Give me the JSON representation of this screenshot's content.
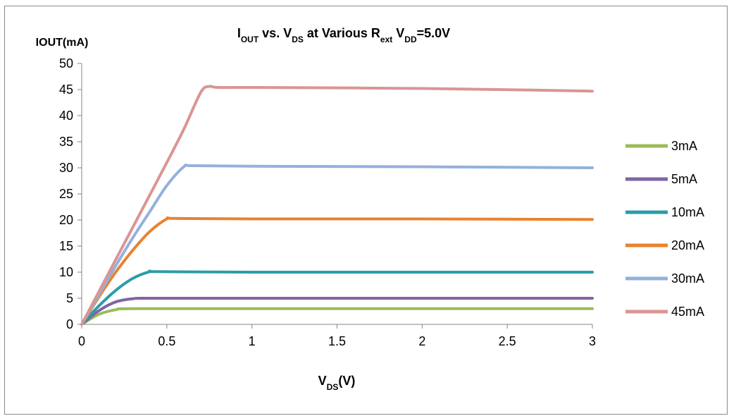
{
  "chart_data": {
    "type": "line",
    "title": {
      "segments": [
        {
          "text": "I",
          "sub": false
        },
        {
          "text": "OUT",
          "sub": true
        },
        {
          "text": " vs. V",
          "sub": false
        },
        {
          "text": "DS",
          "sub": true
        },
        {
          "text": " at Various R",
          "sub": false
        },
        {
          "text": "ext",
          "sub": true
        },
        {
          "text": " V",
          "sub": false
        },
        {
          "text": "DD",
          "sub": true
        },
        {
          "text": "=5.0V",
          "sub": false
        }
      ]
    },
    "ylabel": "IOUT(mA)",
    "xlabel": {
      "segments": [
        {
          "text": "V",
          "sub": false
        },
        {
          "text": "DS",
          "sub": true
        },
        {
          "text": "(V)",
          "sub": false
        }
      ]
    },
    "xlim": [
      0,
      3
    ],
    "ylim": [
      0,
      50
    ],
    "x_ticks": [
      0,
      0.5,
      1,
      1.5,
      2,
      2.5,
      3
    ],
    "x_tick_labels": [
      "0",
      "0.5",
      "1",
      "1.5",
      "2",
      "2.5",
      "3"
    ],
    "y_ticks": [
      0,
      5,
      10,
      15,
      20,
      25,
      30,
      35,
      40,
      45,
      50
    ],
    "y_tick_labels": [
      "0",
      "5",
      "10",
      "15",
      "20",
      "25",
      "30",
      "35",
      "40",
      "45",
      "50"
    ],
    "grid": {
      "horizontal": false,
      "vertical": false
    },
    "legend_position": "right",
    "series": [
      {
        "name": "3mA",
        "color": "#9BBB59",
        "points": [
          [
            0,
            0
          ],
          [
            0.1,
            1.9
          ],
          [
            0.2,
            2.8
          ],
          [
            0.3,
            3.0
          ],
          [
            1,
            3.0
          ],
          [
            2,
            3.0
          ],
          [
            3,
            3.0
          ]
        ]
      },
      {
        "name": "5mA",
        "color": "#8064A2",
        "points": [
          [
            0,
            0
          ],
          [
            0.1,
            2.6
          ],
          [
            0.2,
            4.3
          ],
          [
            0.3,
            4.9
          ],
          [
            0.4,
            5.0
          ],
          [
            1,
            5.0
          ],
          [
            2,
            5.0
          ],
          [
            3,
            5.0
          ]
        ]
      },
      {
        "name": "10mA",
        "color": "#2C9CAA",
        "points": [
          [
            0,
            0
          ],
          [
            0.1,
            3.5
          ],
          [
            0.2,
            6.5
          ],
          [
            0.3,
            8.8
          ],
          [
            0.4,
            10.1
          ],
          [
            0.45,
            10.1
          ],
          [
            1,
            10.0
          ],
          [
            2,
            10.0
          ],
          [
            3,
            10.0
          ]
        ]
      },
      {
        "name": "20mA",
        "color": "#E9822F",
        "points": [
          [
            0,
            0
          ],
          [
            0.1,
            5.2
          ],
          [
            0.2,
            10.0
          ],
          [
            0.3,
            14.2
          ],
          [
            0.4,
            17.8
          ],
          [
            0.5,
            20.2
          ],
          [
            0.55,
            20.3
          ],
          [
            1,
            20.2
          ],
          [
            2,
            20.2
          ],
          [
            3,
            20.1
          ]
        ]
      },
      {
        "name": "30mA",
        "color": "#93B1DB",
        "points": [
          [
            0,
            0
          ],
          [
            0.1,
            5.6
          ],
          [
            0.2,
            11.2
          ],
          [
            0.3,
            16.6
          ],
          [
            0.4,
            21.6
          ],
          [
            0.5,
            26.6
          ],
          [
            0.6,
            30.2
          ],
          [
            0.65,
            30.4
          ],
          [
            1,
            30.3
          ],
          [
            2,
            30.2
          ],
          [
            3,
            30.0
          ]
        ]
      },
      {
        "name": "45mA",
        "color": "#D99594",
        "points": [
          [
            0,
            0
          ],
          [
            0.1,
            6.2
          ],
          [
            0.2,
            12.4
          ],
          [
            0.3,
            18.6
          ],
          [
            0.4,
            24.8
          ],
          [
            0.5,
            31.0
          ],
          [
            0.6,
            37.4
          ],
          [
            0.7,
            44.5
          ],
          [
            0.75,
            45.6
          ],
          [
            0.8,
            45.4
          ],
          [
            1,
            45.4
          ],
          [
            2,
            45.2
          ],
          [
            3,
            44.7
          ]
        ]
      }
    ]
  }
}
